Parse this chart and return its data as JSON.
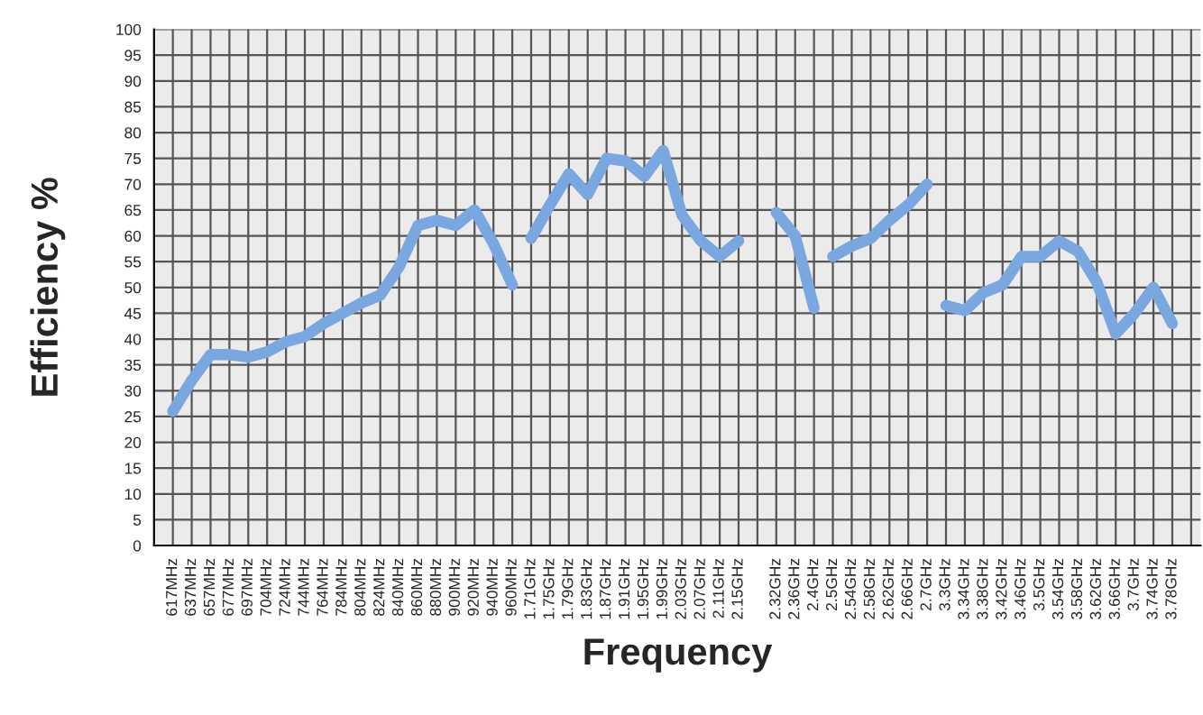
{
  "chart_data": {
    "type": "line",
    "xlabel": "Frequency",
    "ylabel": "Efficiency %",
    "categories": [
      "617MHz",
      "637MHz",
      "657MHz",
      "677MHz",
      "697MHz",
      "704MHz",
      "724MHz",
      "744MHz",
      "764MHz",
      "784MHz",
      "804MHz",
      "824MHz",
      "840MHz",
      "860MHz",
      "880MHz",
      "900MHz",
      "920MHz",
      "940MHz",
      "960MHz",
      "1.71GHz",
      "1.75GHz",
      "1.79GHz",
      "1.83GHz",
      "1.87GHz",
      "1.91GHz",
      "1.95GHz",
      "1.99GHz",
      "2.03GHz",
      "2.07GHz",
      "2.11GHz",
      "2.15GHz",
      null,
      "2.32GHz",
      "2.36GHz",
      "2.4GHz",
      "2.5GHz",
      "2.54GHz",
      "2.58GHz",
      "2.62GHz",
      "2.66GHz",
      "2.7GHz",
      "3.3GHz",
      "3.34GHz",
      "3.38GHz",
      "3.42GHz",
      "3.46GHz",
      "3.5GHz",
      "3.54GHz",
      "3.58GHz",
      "3.62GHz",
      "3.66GHz",
      "3.7GHz",
      "3.74GHz",
      "3.78GHz",
      null
    ],
    "series": [
      {
        "color": "#7ba7e1",
        "values": [
          26,
          32,
          37,
          37,
          36.5,
          37.5,
          39.5,
          40.5,
          43,
          45,
          47,
          48.5,
          54,
          62,
          63,
          62,
          65,
          58.5,
          50.5,
          null,
          null,
          null,
          null,
          null,
          null,
          null,
          null,
          null,
          null,
          null,
          null,
          null,
          null,
          null,
          null,
          null,
          null,
          null,
          null,
          null,
          null,
          null,
          null,
          null,
          null,
          null,
          null,
          null,
          null,
          null,
          null,
          null,
          null,
          null,
          null
        ]
      },
      {
        "color": "#7ba7e1",
        "values": [
          null,
          null,
          null,
          null,
          null,
          null,
          null,
          null,
          null,
          null,
          null,
          null,
          null,
          null,
          null,
          null,
          null,
          null,
          null,
          59.5,
          66,
          72,
          68,
          75,
          74.5,
          71.5,
          76.5,
          64,
          59,
          56,
          59,
          null,
          null,
          null,
          null,
          null,
          null,
          null,
          null,
          null,
          null,
          null,
          null,
          null,
          null,
          null,
          null,
          null,
          null,
          null,
          null,
          null,
          null,
          null,
          null
        ]
      },
      {
        "color": "#7ba7e1",
        "values": [
          null,
          null,
          null,
          null,
          null,
          null,
          null,
          null,
          null,
          null,
          null,
          null,
          null,
          null,
          null,
          null,
          null,
          null,
          null,
          null,
          null,
          null,
          null,
          null,
          null,
          null,
          null,
          null,
          null,
          null,
          null,
          null,
          64.5,
          60,
          46,
          null,
          null,
          null,
          null,
          null,
          null,
          null,
          null,
          null,
          null,
          null,
          null,
          null,
          null,
          null,
          null,
          null,
          null,
          null,
          null
        ]
      },
      {
        "color": "#7ba7e1",
        "values": [
          null,
          null,
          null,
          null,
          null,
          null,
          null,
          null,
          null,
          null,
          null,
          null,
          null,
          null,
          null,
          null,
          null,
          null,
          null,
          null,
          null,
          null,
          null,
          null,
          null,
          null,
          null,
          null,
          null,
          null,
          null,
          null,
          null,
          null,
          null,
          56,
          58,
          59.5,
          63,
          66,
          70,
          null,
          null,
          null,
          null,
          null,
          null,
          null,
          null,
          null,
          null,
          null,
          null,
          null,
          null
        ]
      },
      {
        "color": "#7ba7e1",
        "values": [
          null,
          null,
          null,
          null,
          null,
          null,
          null,
          null,
          null,
          null,
          null,
          null,
          null,
          null,
          null,
          null,
          null,
          null,
          null,
          null,
          null,
          null,
          null,
          null,
          null,
          null,
          null,
          null,
          null,
          null,
          null,
          null,
          null,
          null,
          null,
          null,
          null,
          null,
          null,
          null,
          null,
          46.5,
          45.5,
          49,
          50.5,
          56,
          56,
          59,
          57,
          51,
          41,
          45,
          50,
          43,
          null
        ]
      }
    ],
    "ylim": [
      0,
      100
    ],
    "yticks": [
      0,
      5,
      10,
      15,
      20,
      25,
      30,
      35,
      40,
      45,
      50,
      55,
      60,
      65,
      70,
      75,
      80,
      85,
      90,
      95,
      100
    ],
    "grid": true,
    "legend": false,
    "marker": "none",
    "line_style": "solid"
  }
}
